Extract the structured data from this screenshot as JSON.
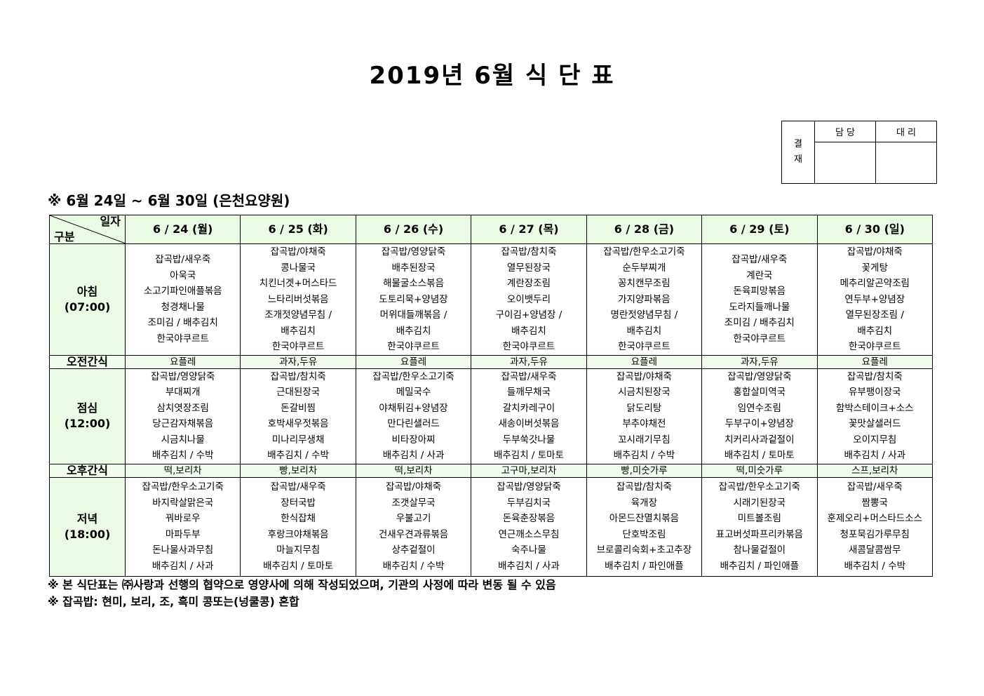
{
  "title": "2019년 6월 식 단 표",
  "approval": {
    "label": "결\n재",
    "label_top": "결",
    "label_bottom": "재",
    "col1": "담 당",
    "col2": "대 리"
  },
  "week_heading": "※  6월 24일 ~ 6월 30일 (은천요양원)",
  "header": {
    "corner_top": "일자",
    "corner_bottom": "구분",
    "days": [
      "6 / 24 (월)",
      "6 / 25 (화)",
      "6 / 26 (수)",
      "6 / 27 (목)",
      "6 / 28 (금)",
      "6 / 29 (토)",
      "6 / 30 (일)"
    ]
  },
  "rows": [
    {
      "label": "아침",
      "time": "(07:00)",
      "cells": [
        [
          "잡곡밥/새우죽",
          "아욱국",
          "소고기파인애플볶음",
          "청경채나물",
          "조미김 / 배추김치",
          "한국야쿠르트"
        ],
        [
          "잡곡밥/야채죽",
          "콩나물국",
          "치킨너겟+머스타드",
          "느타리버섯볶음",
          "조개젓양념무침 /",
          "배추김치",
          "한국야쿠르트"
        ],
        [
          "잡곡밥/영양닭죽",
          "배추된장국",
          "해물굴소스볶음",
          "도토리묵+양념장",
          "머위대들깨볶음 /",
          "배추김치",
          "한국야쿠르트"
        ],
        [
          "잡곡밥/참치죽",
          "열무된장국",
          "계란장조림",
          "오이뱃두리",
          "구이김+양념장 /",
          "배추김치",
          "한국야쿠르트"
        ],
        [
          "잡곡밥/한우소고기죽",
          "순두부찌개",
          "꽁치캔무조림",
          "가지양파볶음",
          "명란젓양념무침 /",
          "배추김치",
          "한국야쿠르트"
        ],
        [
          "잡곡밥/새우죽",
          "계란국",
          "돈육피망볶음",
          "도라지들깨나물",
          "조미김 / 배추김치",
          "한국야쿠르트"
        ],
        [
          "잡곡밥/야채죽",
          "꽃게탕",
          "메추리알곤약조림",
          "연두부+양념장",
          "열무된장조림 /",
          "배추김치",
          "한국야쿠르트"
        ]
      ]
    },
    {
      "label": "오전간식",
      "snack": true,
      "cells": [
        "요플레",
        "과자,두유",
        "요플레",
        "과자,두유",
        "요플레",
        "과자,두유",
        "요플레"
      ]
    },
    {
      "label": "점심",
      "time": "(12:00)",
      "cells": [
        [
          "잡곡밥/영양닭죽",
          "부대찌개",
          "삼치엿장조림",
          "당근감자채볶음",
          "시금치나물",
          "배추김치 / 수박"
        ],
        [
          "잡곡밥/참치죽",
          "근대된장국",
          "돈갈비찜",
          "호박새우젓볶음",
          "미나리무생채",
          "배추김치 / 수박"
        ],
        [
          "잡곡밥/한우소고기죽",
          "메밀국수",
          "야채튀김+양념장",
          "만다린샐러드",
          "비타장아찌",
          "배추김치 / 사과"
        ],
        [
          "잡곡밥/새우죽",
          "들깨무채국",
          "갈치카레구이",
          "새송이버섯볶음",
          "두부쑥갓나물",
          "배추김치 / 토마토"
        ],
        [
          "잡곡밥/야채죽",
          "시금치된장국",
          "닭도리탕",
          "부추야채전",
          "꼬시래기무침",
          "배추김치 / 수박"
        ],
        [
          "잡곡밥/영양닭죽",
          "홍합살미역국",
          "임연수조림",
          "두부구이+양념장",
          "치커리사과겉절이",
          "배추김치 / 토마토"
        ],
        [
          "잡곡밥/참치죽",
          "유부팽이장국",
          "함박스테이크+소스",
          "꽃맛살샐러드",
          "오이지무침",
          "배추김치 / 사과"
        ]
      ]
    },
    {
      "label": "오후간식",
      "snack": true,
      "cells": [
        "떡,보리차",
        "빵,보리차",
        "떡,보리차",
        "고구마,보리차",
        "빵,미숫가루",
        "떡,미숫가루",
        "스프,보리차"
      ]
    },
    {
      "label": "저녁",
      "time": "(18:00)",
      "cells": [
        [
          "잡곡밥/한우소고기죽",
          "바지락살맑은국",
          "꿔바로우",
          "마파두부",
          "돈나물사과무침",
          "배추김치 / 사과"
        ],
        [
          "잡곡밥/새우죽",
          "장터국밥",
          "한식잡채",
          "후랑크야채볶음",
          "마늘지무침",
          "배추김치 / 토마토"
        ],
        [
          "잡곡밥/야채죽",
          "조갯살무국",
          "우불고기",
          "건새우견과류볶음",
          "상추겉절이",
          "배추김치 / 수박"
        ],
        [
          "잡곡밥/영양닭죽",
          "두부김치국",
          "돈육춘장볶음",
          "연근깨소스무침",
          "숙주나물",
          "배추김치 / 사과"
        ],
        [
          "잡곡밥/참치죽",
          "육개장",
          "아몬드잔멸치볶음",
          "단호박조림",
          "브로콜리숙회+초고추장",
          "배추김치 / 파인애플"
        ],
        [
          "잡곡밥/한우소고기죽",
          "시래기된장국",
          "미트볼조림",
          "표고버섯파프리카볶음",
          "참나물겉절이",
          "배추김치 / 파인애플"
        ],
        [
          "잡곡밥/새우죽",
          "짬뽕국",
          "훈제오리+머스타드소스",
          "청포묵김가루무침",
          "새콤달콤쌈무",
          "배추김치 / 수박"
        ]
      ]
    }
  ],
  "notes": [
    "※ 본 식단표는 ㈜사랑과 선행의 협약으로 영양사에 의해 작성되었으며, 기관의 사정에 따라 변동 될 수 있음",
    "※ 잡곡밥: 현미, 보리, 조, 흑미 콩또는(넝쿨콩) 혼합"
  ],
  "colors": {
    "header_bg": "#eafbe4",
    "snack_bg": "#f2fcee"
  }
}
